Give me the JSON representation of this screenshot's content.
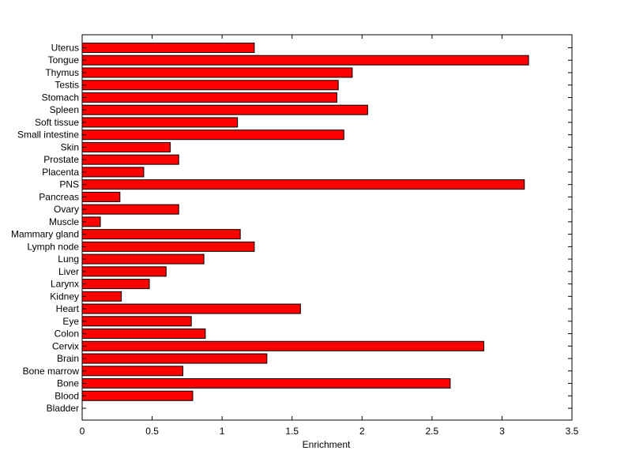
{
  "chart_data": {
    "type": "bar",
    "orientation": "horizontal",
    "title": "",
    "xlabel": "Enrichment",
    "ylabel": "",
    "xlim": [
      0,
      3.5
    ],
    "xticks": [
      "0",
      "0.5",
      "1",
      "1.5",
      "2",
      "2.5",
      "3",
      "3.5"
    ],
    "grid": false,
    "bar_color": "#ff0000",
    "bar_edge_color": "#000000",
    "categories": [
      "Uterus",
      "Tongue",
      "Thymus",
      "Testis",
      "Stomach",
      "Spleen",
      "Soft tissue",
      "Small intestine",
      "Skin",
      "Prostate",
      "Placenta",
      "PNS",
      "Pancreas",
      "Ovary",
      "Muscle",
      "Mammary gland",
      "Lymph node",
      "Lung",
      "Liver",
      "Larynx",
      "Kidney",
      "Heart",
      "Eye",
      "Colon",
      "Cervix",
      "Brain",
      "Bone marrow",
      "Bone",
      "Blood",
      "Bladder"
    ],
    "values": [
      1.23,
      3.19,
      1.93,
      1.83,
      1.82,
      2.04,
      1.11,
      1.87,
      0.63,
      0.69,
      0.44,
      3.16,
      0.27,
      0.69,
      0.13,
      1.13,
      1.23,
      0.87,
      0.6,
      0.48,
      0.28,
      1.56,
      0.78,
      0.88,
      2.87,
      1.32,
      0.72,
      2.63,
      0.79,
      0
    ]
  }
}
